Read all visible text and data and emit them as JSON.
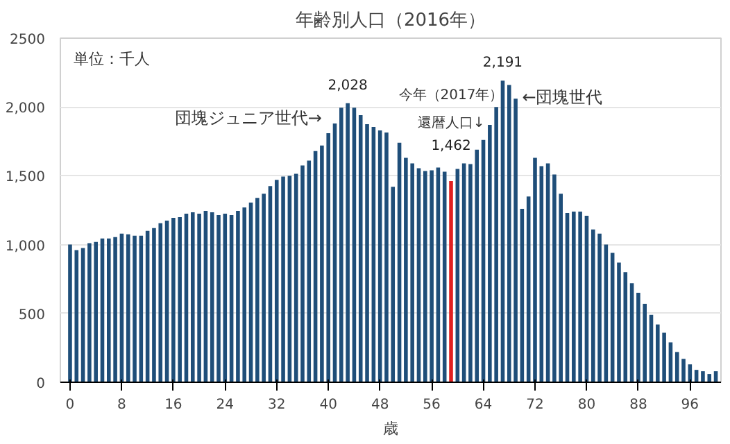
{
  "chart_data": {
    "type": "bar",
    "title": "年齢別人口（2016年）",
    "xlabel": "歳",
    "x": [
      0,
      1,
      2,
      3,
      4,
      5,
      6,
      7,
      8,
      9,
      10,
      11,
      12,
      13,
      14,
      15,
      16,
      17,
      18,
      19,
      20,
      21,
      22,
      23,
      24,
      25,
      26,
      27,
      28,
      29,
      30,
      31,
      32,
      33,
      34,
      35,
      36,
      37,
      38,
      39,
      40,
      41,
      42,
      43,
      44,
      45,
      46,
      47,
      48,
      49,
      50,
      51,
      52,
      53,
      54,
      55,
      56,
      57,
      58,
      59,
      60,
      61,
      62,
      63,
      64,
      65,
      66,
      67,
      68,
      69,
      70,
      71,
      72,
      73,
      74,
      75,
      76,
      77,
      78,
      79,
      80,
      81,
      82,
      83,
      84,
      85,
      86,
      87,
      88,
      89,
      90,
      91,
      92,
      93,
      94,
      95,
      96,
      97,
      98,
      99,
      100
    ],
    "values": [
      1000,
      960,
      975,
      1010,
      1020,
      1045,
      1045,
      1055,
      1080,
      1075,
      1065,
      1065,
      1100,
      1120,
      1155,
      1175,
      1195,
      1200,
      1225,
      1235,
      1225,
      1245,
      1235,
      1215,
      1225,
      1215,
      1245,
      1270,
      1305,
      1340,
      1370,
      1425,
      1470,
      1495,
      1500,
      1515,
      1575,
      1610,
      1680,
      1720,
      1810,
      1880,
      1995,
      2028,
      1995,
      1940,
      1875,
      1855,
      1830,
      1815,
      1420,
      1740,
      1630,
      1590,
      1555,
      1535,
      1540,
      1560,
      1530,
      1462,
      1550,
      1590,
      1585,
      1690,
      1760,
      1870,
      2000,
      2191,
      2160,
      2060,
      1260,
      1350,
      1630,
      1570,
      1590,
      1510,
      1370,
      1230,
      1240,
      1240,
      1210,
      1110,
      1080,
      1000,
      940,
      870,
      800,
      720,
      650,
      570,
      490,
      420,
      360,
      290,
      220,
      170,
      130,
      90,
      80,
      60,
      80
    ],
    "colors": [
      "#1f4e79",
      "#1f4e79",
      "#1f4e79",
      "#1f4e79",
      "#1f4e79",
      "#1f4e79",
      "#1f4e79",
      "#1f4e79",
      "#1f4e79",
      "#1f4e79",
      "#1f4e79",
      "#1f4e79",
      "#1f4e79",
      "#1f4e79",
      "#1f4e79",
      "#1f4e79",
      "#1f4e79",
      "#1f4e79",
      "#1f4e79",
      "#1f4e79",
      "#1f4e79",
      "#1f4e79",
      "#1f4e79",
      "#1f4e79",
      "#1f4e79",
      "#1f4e79",
      "#1f4e79",
      "#1f4e79",
      "#1f4e79",
      "#1f4e79",
      "#1f4e79",
      "#1f4e79",
      "#1f4e79",
      "#1f4e79",
      "#1f4e79",
      "#1f4e79",
      "#1f4e79",
      "#1f4e79",
      "#1f4e79",
      "#1f4e79",
      "#1f4e79",
      "#1f4e79",
      "#1f4e79",
      "#1f4e79",
      "#1f4e79",
      "#1f4e79",
      "#1f4e79",
      "#1f4e79",
      "#1f4e79",
      "#1f4e79",
      "#1f4e79",
      "#1f4e79",
      "#1f4e79",
      "#1f4e79",
      "#1f4e79",
      "#1f4e79",
      "#1f4e79",
      "#1f4e79",
      "#1f4e79",
      "#e02020",
      "#1f4e79",
      "#1f4e79",
      "#1f4e79",
      "#1f4e79",
      "#1f4e79",
      "#1f4e79",
      "#1f4e79",
      "#1f4e79",
      "#1f4e79",
      "#1f4e79",
      "#1f4e79",
      "#1f4e79",
      "#1f4e79",
      "#1f4e79",
      "#1f4e79",
      "#1f4e79",
      "#1f4e79",
      "#1f4e79",
      "#1f4e79",
      "#1f4e79",
      "#1f4e79",
      "#1f4e79",
      "#1f4e79",
      "#1f4e79",
      "#1f4e79",
      "#1f4e79",
      "#1f4e79",
      "#1f4e79",
      "#1f4e79",
      "#1f4e79",
      "#1f4e79",
      "#1f4e79",
      "#1f4e79",
      "#1f4e79",
      "#1f4e79",
      "#1f4e79",
      "#1f4e79",
      "#1f4e79",
      "#1f4e79",
      "#1f4e79",
      "#1f4e79"
    ],
    "value_labels": [
      null,
      null,
      null,
      null,
      null,
      null,
      null,
      null,
      null,
      null,
      null,
      null,
      null,
      null,
      null,
      null,
      null,
      null,
      null,
      null,
      null,
      null,
      null,
      null,
      null,
      null,
      null,
      null,
      null,
      null,
      null,
      null,
      null,
      null,
      null,
      null,
      null,
      null,
      null,
      null,
      null,
      null,
      null,
      "2,028",
      null,
      null,
      null,
      null,
      null,
      null,
      null,
      null,
      null,
      null,
      null,
      null,
      null,
      null,
      null,
      "1,462",
      null,
      null,
      null,
      null,
      null,
      null,
      null,
      "2,191",
      null,
      null,
      null,
      null,
      null,
      null,
      null,
      null,
      null,
      null,
      null,
      null,
      null,
      null,
      null,
      null,
      null,
      null,
      null,
      null,
      null,
      null,
      null,
      null,
      null,
      null,
      null,
      null,
      null,
      null,
      null,
      null,
      null
    ],
    "annotations": [
      "単位：千人",
      {
        "text": "団塊ジュニア世代→",
        "x": 42,
        "y": 1995
      },
      "今年（2017年）",
      "還暦人口↓",
      {
        "text": "←団塊世代",
        "x": 69,
        "y": 2060
      }
    ],
    "xlim": [
      -1.5,
      100.8
    ],
    "xticks": [
      0,
      8,
      16,
      24,
      32,
      40,
      48,
      56,
      64,
      72,
      80,
      88,
      96
    ],
    "ylim": [
      0,
      2500
    ],
    "yticks": [
      0,
      {
        "value": 500,
        "label": "500"
      },
      {
        "value": 1000,
        "label": "1,000"
      },
      {
        "value": 1500,
        "label": "1,500"
      },
      {
        "value": 2000,
        "label": "2,000"
      },
      2500
    ],
    "grid": "y"
  }
}
